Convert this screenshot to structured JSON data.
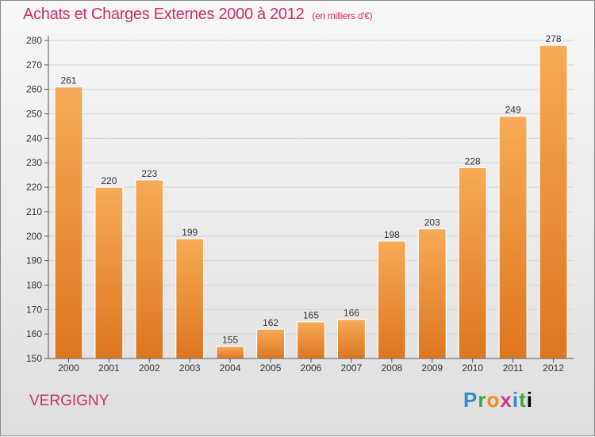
{
  "header": {
    "title": "Achats et Charges Externes 2000 à 2012",
    "unit": "(en milliers d'€)"
  },
  "footer": {
    "city": "VERGIGNY",
    "logo": [
      "P",
      "r",
      "o",
      "x",
      "i",
      "t",
      "i"
    ]
  },
  "colors": {
    "title": "#c8306a",
    "bar_light": "#f6a653",
    "bar_dark": "#e07a23"
  },
  "chart_data": {
    "type": "bar",
    "categories": [
      "2000",
      "2001",
      "2002",
      "2003",
      "2004",
      "2005",
      "2006",
      "2007",
      "2008",
      "2009",
      "2010",
      "2011",
      "2012"
    ],
    "values": [
      261,
      220,
      223,
      199,
      155,
      162,
      165,
      166,
      198,
      203,
      228,
      249,
      278
    ],
    "yticks": [
      150,
      160,
      170,
      180,
      190,
      200,
      210,
      220,
      230,
      240,
      250,
      260,
      270,
      280
    ],
    "ylim": [
      150,
      280
    ],
    "grid": true,
    "legend": "none"
  }
}
